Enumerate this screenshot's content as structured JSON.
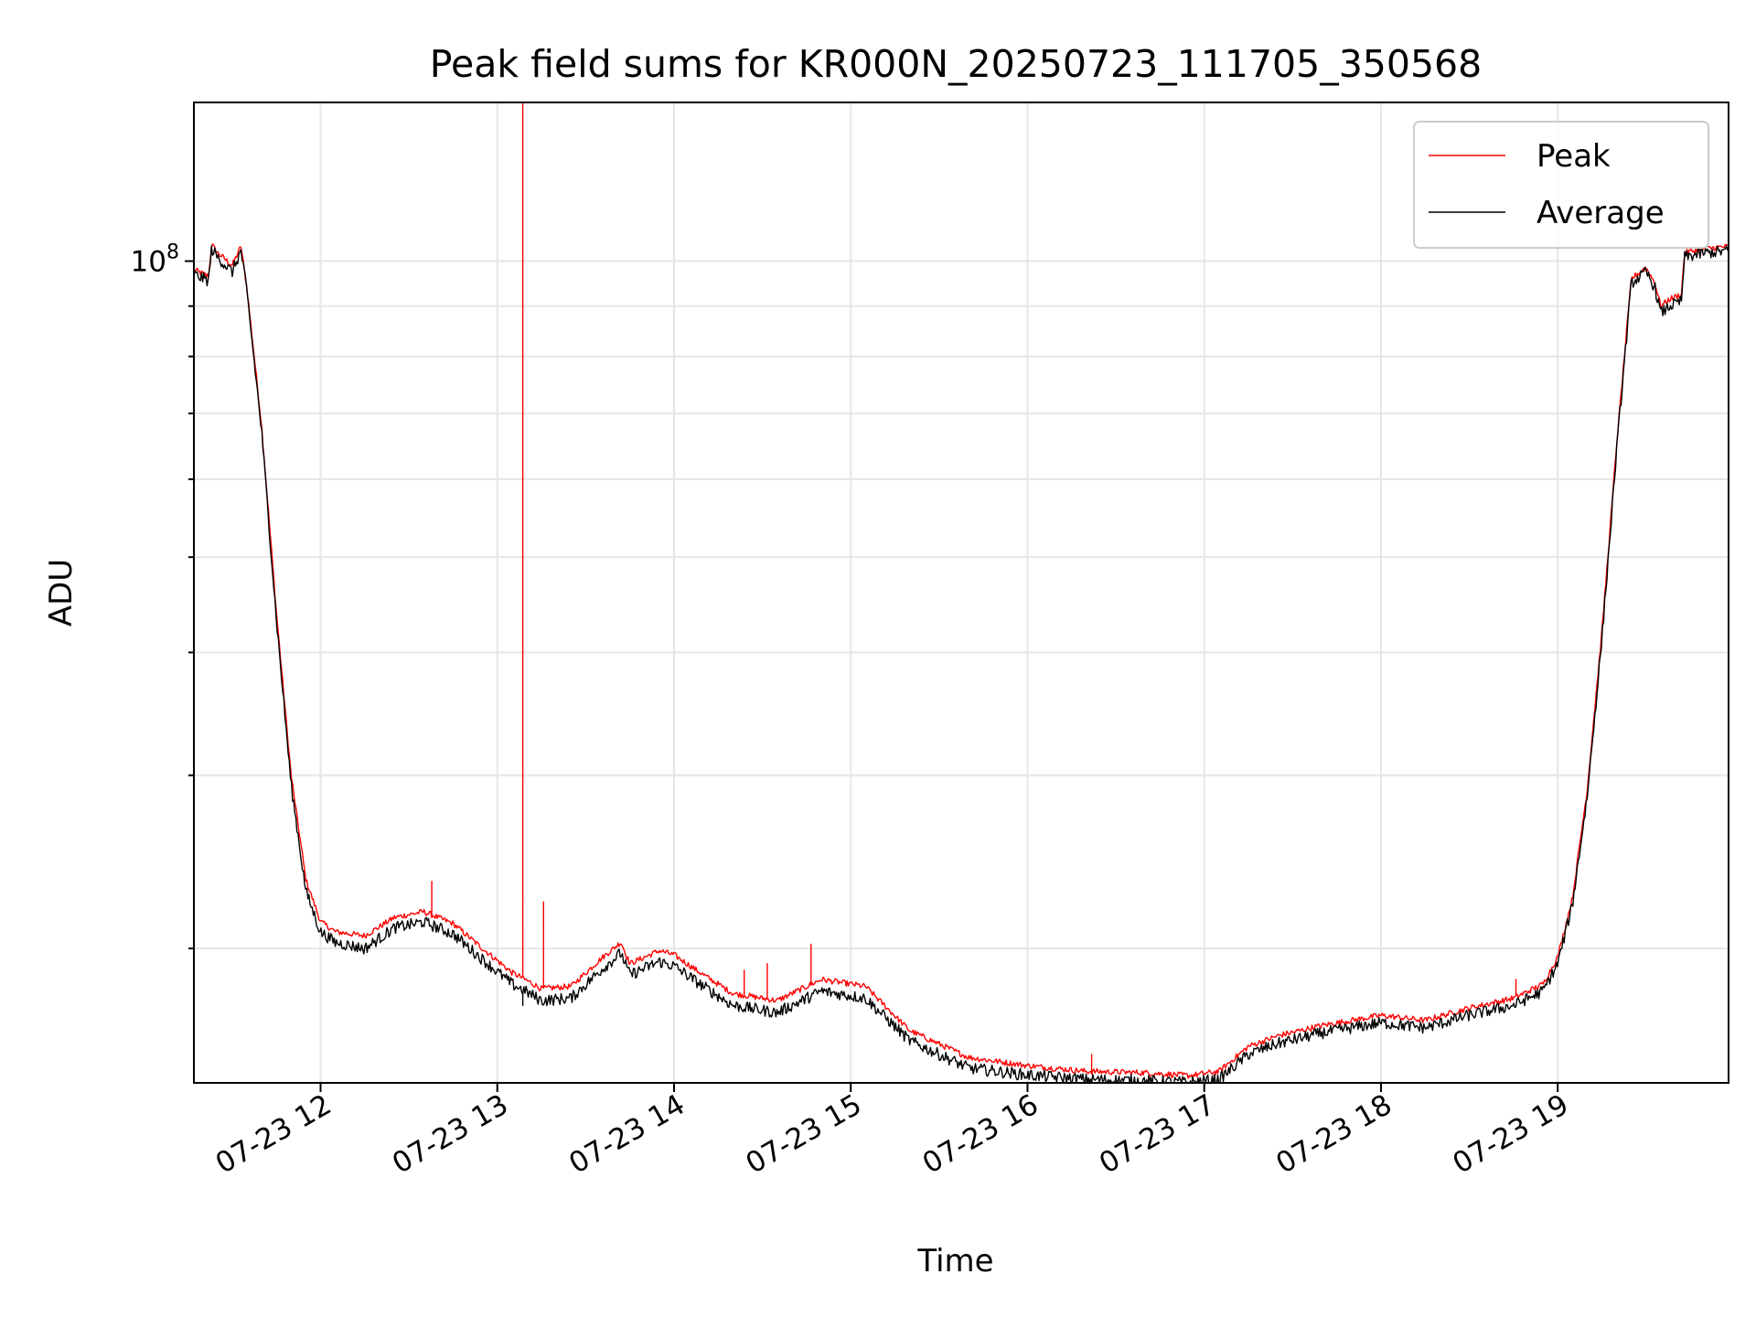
{
  "chart_data": {
    "type": "line",
    "title": "Peak field sums for KR000N_20250723_111705_350568",
    "xlabel": "Time",
    "ylabel": "ADU",
    "yscale": "log",
    "grid": true,
    "legend_position": "top-right",
    "x_tick_labels": [
      "07-23 12",
      "07-23 13",
      "07-23 14",
      "07-23 15",
      "07-23 16",
      "07-23 17",
      "07-23 18",
      "07-23 19"
    ],
    "x_tick_values": [
      "2025-07-23 12:00",
      "2025-07-23 13:00",
      "2025-07-23 14:00",
      "2025-07-23 15:00",
      "2025-07-23 16:00",
      "2025-07-23 17:00",
      "2025-07-23 18:00",
      "2025-07-23 19:00"
    ],
    "xlim": [
      "2025-07-23 11:17",
      "2025-07-23 19:58"
    ],
    "ylim": [
      14600000,
      145000000
    ],
    "y_tick_values": [
      100000000
    ],
    "y_tick_labels": [
      {
        "base": "10",
        "exp": "8"
      }
    ],
    "y_minor_ticks": [
      20000000,
      30000000,
      40000000,
      50000000,
      60000000,
      70000000,
      80000000,
      90000000
    ],
    "series": [
      {
        "name": "Peak",
        "color": "#ff0000",
        "x": [
          "2025-07-23 11:17",
          "2025-07-23 11:22",
          "2025-07-23 11:23",
          "2025-07-23 11:25",
          "2025-07-23 11:30",
          "2025-07-23 11:33",
          "2025-07-23 11:35",
          "2025-07-23 11:40",
          "2025-07-23 11:45",
          "2025-07-23 11:50",
          "2025-07-23 11:55",
          "2025-07-23 12:00",
          "2025-07-23 12:05",
          "2025-07-23 12:15",
          "2025-07-23 12:25",
          "2025-07-23 12:35",
          "2025-07-23 12:45",
          "2025-07-23 12:55",
          "2025-07-23 13:05",
          "2025-07-23 13:08",
          "2025-07-23 13:15",
          "2025-07-23 13:25",
          "2025-07-23 13:35",
          "2025-07-23 13:42",
          "2025-07-23 13:45",
          "2025-07-23 13:55",
          "2025-07-23 14:00",
          "2025-07-23 14:10",
          "2025-07-23 14:20",
          "2025-07-23 14:35",
          "2025-07-23 14:50",
          "2025-07-23 15:05",
          "2025-07-23 15:20",
          "2025-07-23 15:40",
          "2025-07-23 16:00",
          "2025-07-23 16:20",
          "2025-07-23 16:40",
          "2025-07-23 16:55",
          "2025-07-23 17:05",
          "2025-07-23 17:15",
          "2025-07-23 17:25",
          "2025-07-23 17:40",
          "2025-07-23 18:00",
          "2025-07-23 18:15",
          "2025-07-23 18:30",
          "2025-07-23 18:45",
          "2025-07-23 18:55",
          "2025-07-23 19:00",
          "2025-07-23 19:05",
          "2025-07-23 19:10",
          "2025-07-23 19:15",
          "2025-07-23 19:20",
          "2025-07-23 19:25",
          "2025-07-23 19:30",
          "2025-07-23 19:33",
          "2025-07-23 19:35",
          "2025-07-23 19:38",
          "2025-07-23 19:42",
          "2025-07-23 19:43",
          "2025-07-23 19:50",
          "2025-07-23 19:58"
        ],
        "y": [
          98000000,
          96500000,
          104000000,
          102000000,
          99000000,
          103500000,
          94000000,
          68000000,
          44000000,
          30000000,
          23500000,
          21300000,
          20800000,
          20600000,
          21500000,
          21800000,
          21200000,
          20000000,
          18900000,
          18700000,
          18200000,
          18300000,
          19500000,
          20300000,
          19300000,
          19900000,
          19700000,
          18800000,
          18000000,
          17700000,
          18600000,
          18300000,
          16500000,
          15500000,
          15200000,
          15000000,
          14950000,
          14850000,
          15000000,
          15900000,
          16300000,
          16700000,
          17100000,
          16900000,
          17400000,
          17800000,
          18400000,
          19600000,
          22500000,
          29000000,
          42000000,
          65000000,
          96000000,
          98500000,
          95000000,
          90000000,
          91500000,
          92500000,
          102000000,
          103000000,
          103500000
        ],
        "spikes": [
          {
            "x": "2025-07-23 12:38",
            "y": 23400000
          },
          {
            "x": "2025-07-23 13:09",
            "y": 145000000
          },
          {
            "x": "2025-07-23 13:16",
            "y": 22300000
          },
          {
            "x": "2025-07-23 14:24",
            "y": 19000000
          },
          {
            "x": "2025-07-23 14:32",
            "y": 19300000
          },
          {
            "x": "2025-07-23 14:47",
            "y": 20200000
          },
          {
            "x": "2025-07-23 16:22",
            "y": 15600000
          },
          {
            "x": "2025-07-23 18:46",
            "y": 18600000
          }
        ]
      },
      {
        "name": "Average",
        "color": "#000000",
        "x": [
          "2025-07-23 11:17",
          "2025-07-23 11:22",
          "2025-07-23 11:23",
          "2025-07-23 11:25",
          "2025-07-23 11:30",
          "2025-07-23 11:33",
          "2025-07-23 11:35",
          "2025-07-23 11:40",
          "2025-07-23 11:45",
          "2025-07-23 11:50",
          "2025-07-23 11:55",
          "2025-07-23 12:00",
          "2025-07-23 12:05",
          "2025-07-23 12:15",
          "2025-07-23 12:25",
          "2025-07-23 12:35",
          "2025-07-23 12:45",
          "2025-07-23 12:55",
          "2025-07-23 13:05",
          "2025-07-23 13:08",
          "2025-07-23 13:15",
          "2025-07-23 13:25",
          "2025-07-23 13:35",
          "2025-07-23 13:42",
          "2025-07-23 13:45",
          "2025-07-23 13:55",
          "2025-07-23 14:00",
          "2025-07-23 14:10",
          "2025-07-23 14:20",
          "2025-07-23 14:35",
          "2025-07-23 14:50",
          "2025-07-23 15:05",
          "2025-07-23 15:20",
          "2025-07-23 15:40",
          "2025-07-23 16:00",
          "2025-07-23 16:20",
          "2025-07-23 16:40",
          "2025-07-23 16:55",
          "2025-07-23 17:05",
          "2025-07-23 17:15",
          "2025-07-23 17:25",
          "2025-07-23 17:40",
          "2025-07-23 18:00",
          "2025-07-23 18:15",
          "2025-07-23 18:30",
          "2025-07-23 18:45",
          "2025-07-23 18:55",
          "2025-07-23 19:00",
          "2025-07-23 19:05",
          "2025-07-23 19:10",
          "2025-07-23 19:15",
          "2025-07-23 19:20",
          "2025-07-23 19:25",
          "2025-07-23 19:30",
          "2025-07-23 19:33",
          "2025-07-23 19:35",
          "2025-07-23 19:38",
          "2025-07-23 19:42",
          "2025-07-23 19:43",
          "2025-07-23 19:50",
          "2025-07-23 19:58"
        ],
        "y": [
          97500000,
          96000000,
          103500000,
          101500000,
          98000000,
          103000000,
          93500000,
          67500000,
          43500000,
          29500000,
          23000000,
          20900000,
          20400000,
          20100000,
          21100000,
          21400000,
          20800000,
          19600000,
          18500000,
          18300000,
          17800000,
          17900000,
          19100000,
          19900000,
          18900000,
          19500000,
          19300000,
          18400000,
          17600000,
          17300000,
          18200000,
          17900000,
          16200000,
          15200000,
          14950000,
          14800000,
          14750000,
          14700000,
          14800000,
          15700000,
          16100000,
          16500000,
          16900000,
          16700000,
          17200000,
          17600000,
          18200000,
          19400000,
          22300000,
          28700000,
          41500000,
          64500000,
          95500000,
          98000000,
          94500000,
          89000000,
          90500000,
          91500000,
          101500000,
          102500000,
          103000000
        ],
        "spikes": [
          {
            "x": "2025-07-23 13:09",
            "y": 17500000
          }
        ]
      }
    ]
  }
}
